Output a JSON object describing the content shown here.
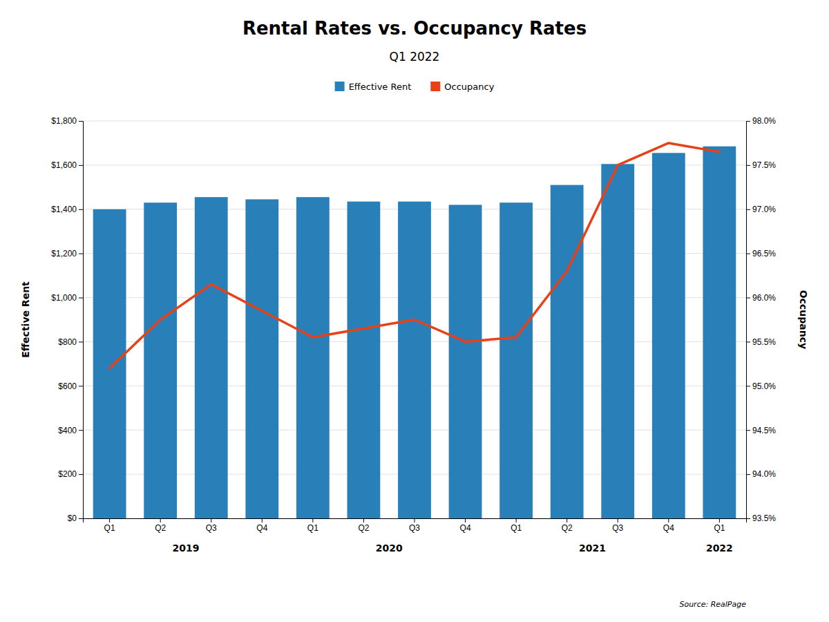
{
  "chart_data": {
    "type": "bar",
    "title": "Rental Rates vs. Occupancy Rates",
    "subtitle": "Q1 2022",
    "categories": [
      "Q1",
      "Q2",
      "Q3",
      "Q4",
      "Q1",
      "Q2",
      "Q3",
      "Q4",
      "Q1",
      "Q2",
      "Q3",
      "Q4",
      "Q1"
    ],
    "series": [
      {
        "name": "Effective Rent",
        "type": "bar",
        "color": "#2980B9",
        "values": [
          1400,
          1430,
          1455,
          1445,
          1455,
          1435,
          1435,
          1420,
          1430,
          1510,
          1605,
          1655,
          1685
        ]
      },
      {
        "name": "Occupancy",
        "type": "line",
        "axis": "y2",
        "color": "#E84118",
        "values": [
          95.2,
          95.75,
          96.15,
          95.85,
          95.55,
          95.65,
          95.75,
          95.5,
          95.55,
          96.3,
          97.5,
          97.75,
          97.65
        ]
      }
    ],
    "y_label": "Effective Rent",
    "y2_label": "Occupancy",
    "ylim": [
      0,
      1800
    ],
    "yticks": [
      {
        "value": 0,
        "label": "$0"
      },
      {
        "value": 200,
        "label": "$200"
      },
      {
        "value": 400,
        "label": "$400"
      },
      {
        "value": 600,
        "label": "$600"
      },
      {
        "value": 800,
        "label": "$800"
      },
      {
        "value": 1000,
        "label": "$1,000"
      },
      {
        "value": 1200,
        "label": "$1,200"
      },
      {
        "value": 1400,
        "label": "$1,400"
      },
      {
        "value": 1600,
        "label": "$1,600"
      },
      {
        "value": 1800,
        "label": "$1,800"
      }
    ],
    "y2lim": [
      93.5,
      98.0
    ],
    "y2ticks": [
      {
        "value": 93.5,
        "label": "93.5%"
      },
      {
        "value": 94.0,
        "label": "94.0%"
      },
      {
        "value": 94.5,
        "label": "94.5%"
      },
      {
        "value": 95.0,
        "label": "95.0%"
      },
      {
        "value": 95.5,
        "label": "95.5%"
      },
      {
        "value": 96.0,
        "label": "96.0%"
      },
      {
        "value": 96.5,
        "label": "96.5%"
      },
      {
        "value": 97.0,
        "label": "97.0%"
      },
      {
        "value": 97.5,
        "label": "97.5%"
      },
      {
        "value": 98.0,
        "label": "98.0%"
      }
    ],
    "annotations": [
      {
        "text": "2019",
        "x": 1.5
      },
      {
        "text": "2020",
        "x": 5.5
      },
      {
        "text": "2021",
        "x": 9.5
      },
      {
        "text": "2022",
        "x": 12.0
      }
    ],
    "source": "Source: RealPage",
    "grid": true,
    "legend": "top"
  }
}
